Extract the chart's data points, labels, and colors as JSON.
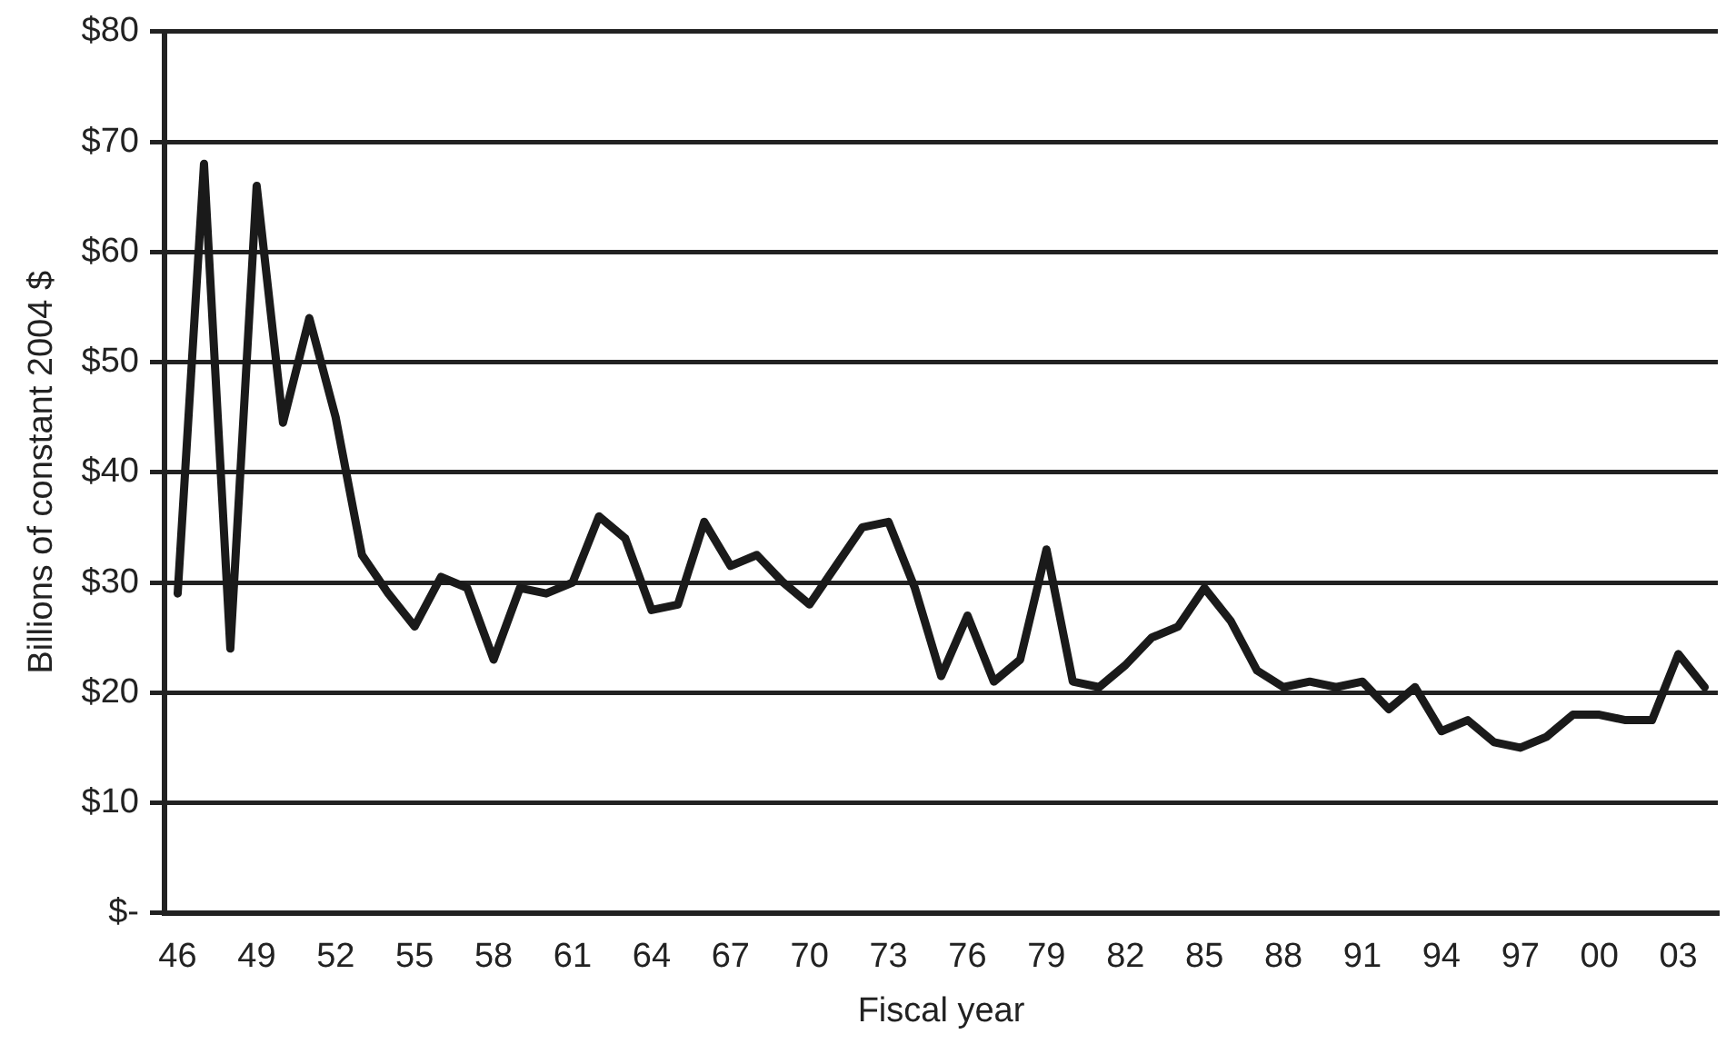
{
  "chart_data": {
    "type": "line",
    "xlabel": "Fiscal year",
    "ylabel": "Billions of constant 2004 $",
    "categories": [
      "46",
      null,
      null,
      "49",
      null,
      null,
      "52",
      null,
      null,
      "55",
      null,
      null,
      "58",
      null,
      null,
      "61",
      null,
      null,
      "64",
      null,
      null,
      "67",
      null,
      null,
      "70",
      null,
      null,
      "73",
      null,
      null,
      "76",
      null,
      null,
      "79",
      null,
      null,
      "82",
      null,
      null,
      "85",
      null,
      null,
      "88",
      null,
      null,
      "91",
      null,
      null,
      "94",
      null,
      null,
      "97",
      null,
      null,
      "00",
      null,
      null,
      "03",
      null
    ],
    "series": [
      {
        "color": "#1a1a1a",
        "values": [
          29,
          68,
          24,
          66,
          44.5,
          54,
          45,
          32.5,
          29,
          26,
          30.5,
          29.5,
          23,
          29.5,
          29,
          30,
          36,
          34,
          27.5,
          28,
          35.5,
          31.5,
          32.5,
          30,
          28,
          31.5,
          35,
          35.5,
          29.5,
          21.5,
          27,
          21,
          23,
          33,
          21,
          20.5,
          22.5,
          25,
          26,
          29.5,
          26.5,
          22,
          20.5,
          21,
          20.5,
          21,
          18.5,
          20.5,
          16.5,
          17.5,
          15.5,
          15,
          16,
          18,
          18,
          17.5,
          17.5,
          23.5,
          20.5
        ]
      }
    ],
    "ylim": [
      0,
      80
    ],
    "yticks": [
      {
        "value": 0,
        "label": "$-"
      },
      {
        "value": 10,
        "label": "$10"
      },
      {
        "value": 20,
        "label": "$20"
      },
      {
        "value": 30,
        "label": "$30"
      },
      {
        "value": 40,
        "label": "$40"
      },
      {
        "value": 50,
        "label": "$50"
      },
      {
        "value": 60,
        "label": "$60"
      },
      {
        "value": 70,
        "label": "$70"
      },
      {
        "value": 80,
        "label": "$80"
      }
    ],
    "grid": "y",
    "legend": false,
    "marker": "none",
    "line_style": "solid"
  }
}
